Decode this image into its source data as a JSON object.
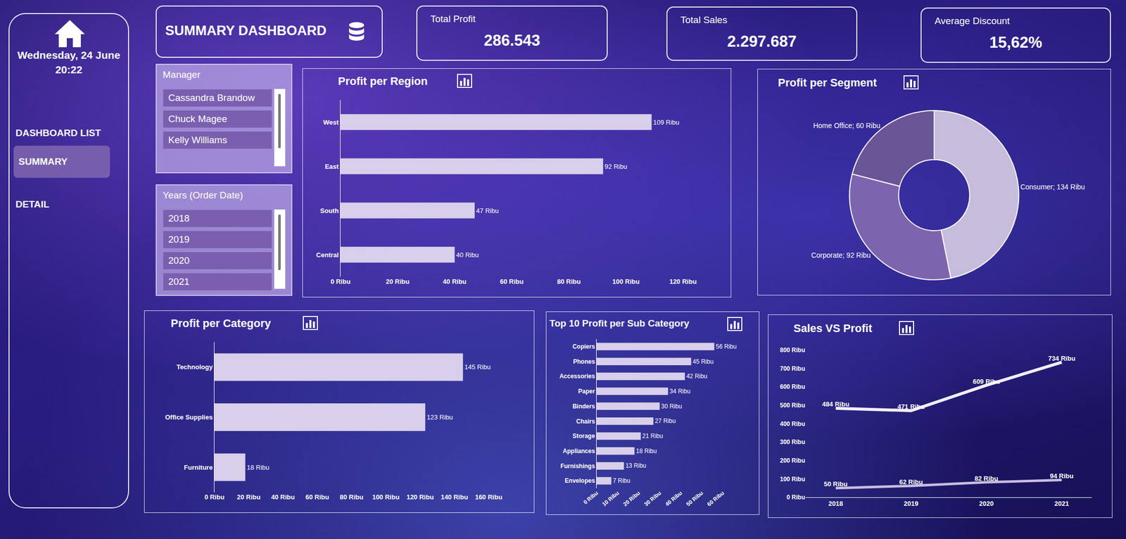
{
  "header": {
    "title": "SUMMARY DASHBOARD"
  },
  "sidebar": {
    "date": "Wednesday, 24 June",
    "time": "20:22",
    "items": [
      "DASHBOARD LIST",
      "SUMMARY",
      "DETAIL"
    ],
    "active": "SUMMARY"
  },
  "kpis": [
    {
      "label": "Total Profit",
      "value": "286.543"
    },
    {
      "label": "Total Sales",
      "value": "2.297.687"
    },
    {
      "label": "Average Discount",
      "value": "15,62%"
    }
  ],
  "slicers": [
    {
      "title": "Manager",
      "items": [
        "Cassandra Brandow",
        "Chuck Magee",
        "Kelly Williams"
      ]
    },
    {
      "title": "Years (Order Date)",
      "items": [
        "2018",
        "2019",
        "2020",
        "2021"
      ]
    }
  ],
  "chart_data": [
    {
      "type": "bar",
      "title": "Profit per Region",
      "orientation": "horizontal",
      "categories": [
        "West",
        "East",
        "South",
        "Central"
      ],
      "values": [
        109,
        92,
        47,
        40
      ],
      "value_labels": [
        "109 Ribu",
        "92 Ribu",
        "47 Ribu",
        "40 Ribu"
      ],
      "data_labels": true,
      "color": "#d8cfea",
      "xlim": [
        0,
        120
      ],
      "xticks": [
        {
          "value": 0,
          "label": "0 Ribu"
        },
        {
          "value": 20,
          "label": "20 Ribu"
        },
        {
          "value": 40,
          "label": "40 Ribu"
        },
        {
          "value": 60,
          "label": "60 Ribu"
        },
        {
          "value": 80,
          "label": "80 Ribu"
        },
        {
          "value": 100,
          "label": "100 Ribu"
        },
        {
          "value": 120,
          "label": "120 Ribu"
        }
      ],
      "grid": false
    },
    {
      "type": "pie",
      "title": "Profit per Segment",
      "categories": [
        "Consumer",
        "Corporate",
        "Home Office"
      ],
      "values": [
        134,
        92,
        60
      ],
      "value_labels": [
        "Consumer; 134 Ribu",
        "Corporate; 92 Ribu",
        "Home Office; 60 Ribu"
      ],
      "data_labels": true,
      "colors": [
        "#c6bcdc",
        "#7d64ae",
        "#6a5596"
      ]
    },
    {
      "type": "bar",
      "title": "Profit per Category",
      "orientation": "horizontal",
      "categories": [
        "Technology",
        "Office Supplies",
        "Furniture"
      ],
      "values": [
        145,
        123,
        18
      ],
      "value_labels": [
        "145 Ribu",
        "123 Ribu",
        "18 Ribu"
      ],
      "data_labels": true,
      "color": "#d8cfea",
      "xlim": [
        0,
        160
      ],
      "xticks": [
        {
          "value": 0,
          "label": "0 Ribu"
        },
        {
          "value": 20,
          "label": "20 Ribu"
        },
        {
          "value": 40,
          "label": "40 Ribu"
        },
        {
          "value": 60,
          "label": "60 Ribu"
        },
        {
          "value": 80,
          "label": "80 Ribu"
        },
        {
          "value": 100,
          "label": "100 Ribu"
        },
        {
          "value": 120,
          "label": "120 Ribu"
        },
        {
          "value": 140,
          "label": "140 Ribu"
        },
        {
          "value": 160,
          "label": "160 Ribu"
        }
      ],
      "grid": false
    },
    {
      "type": "bar",
      "title": "Top 10 Profit per Sub Category",
      "orientation": "horizontal",
      "categories": [
        "Copiers",
        "Phones",
        "Accessories",
        "Paper",
        "Binders",
        "Chairs",
        "Storage",
        "Appliances",
        "Furnishings",
        "Envelopes"
      ],
      "values": [
        56,
        45,
        42,
        34,
        30,
        27,
        21,
        18,
        13,
        7
      ],
      "value_labels": [
        "56 Ribu",
        "45 Ribu",
        "42 Ribu",
        "34 Ribu",
        "30 Ribu",
        "27 Ribu",
        "21 Ribu",
        "18 Ribu",
        "13 Ribu",
        "7 Ribu"
      ],
      "data_labels": true,
      "color": "#d8cfea",
      "xlim": [
        0,
        60
      ],
      "xticks": [
        {
          "value": 0,
          "label": "0 Ribu"
        },
        {
          "value": 10,
          "label": "10 Ribu"
        },
        {
          "value": 20,
          "label": "20 Ribu"
        },
        {
          "value": 30,
          "label": "30 Ribu"
        },
        {
          "value": 40,
          "label": "40 Ribu"
        },
        {
          "value": 50,
          "label": "50 Ribu"
        },
        {
          "value": 60,
          "label": "60 Ribu"
        }
      ],
      "grid": false
    },
    {
      "type": "line",
      "title": "Sales VS Profit",
      "categories": [
        "2018",
        "2019",
        "2020",
        "2021"
      ],
      "series": [
        {
          "color": "#f2eefa",
          "values": [
            484,
            471,
            609,
            734
          ],
          "value_labels": [
            "484 Ribu",
            "471 Ribu",
            "609 Ribu",
            "734 Ribu"
          ]
        },
        {
          "color": "#c8bde0",
          "values": [
            50,
            62,
            82,
            94
          ],
          "value_labels": [
            "50 Ribu",
            "62 Ribu",
            "82 Ribu",
            "94 Ribu"
          ]
        }
      ],
      "data_labels": true,
      "ylim": [
        0,
        800
      ],
      "yticks": [
        {
          "value": 0,
          "label": "0 Ribu"
        },
        {
          "value": 100,
          "label": "100 Ribu"
        },
        {
          "value": 200,
          "label": "200 Ribu"
        },
        {
          "value": 300,
          "label": "300 Ribu"
        },
        {
          "value": 400,
          "label": "400 Ribu"
        },
        {
          "value": 500,
          "label": "500 Ribu"
        },
        {
          "value": 600,
          "label": "600 Ribu"
        },
        {
          "value": 700,
          "label": "700 Ribu"
        },
        {
          "value": 800,
          "label": "800 Ribu"
        }
      ],
      "grid": false
    }
  ]
}
